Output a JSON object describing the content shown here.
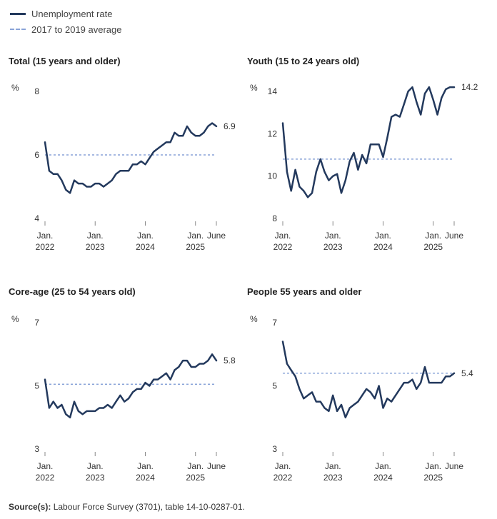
{
  "legend": {
    "line_label": "Unemployment rate",
    "avg_label": "2017 to 2019 average"
  },
  "colors": {
    "line": "#23395d",
    "average": "#8aa4d8",
    "text": "#333333"
  },
  "source": {
    "label": "Source(s):",
    "text": "Labour Force Survey (3701), table 14-10-0287-01."
  },
  "chart_data": [
    {
      "type": "line",
      "title": "Total (15 years and older)",
      "ylabel": "%",
      "ylim": [
        4,
        8
      ],
      "yticks": [
        4,
        6,
        8
      ],
      "xticks": [
        {
          "month": 0,
          "label": [
            "Jan.",
            "2022"
          ]
        },
        {
          "month": 12,
          "label": [
            "Jan.",
            "2023"
          ]
        },
        {
          "month": 24,
          "label": [
            "Jan.",
            "2024"
          ]
        },
        {
          "month": 36,
          "label": [
            "Jan.",
            "2025"
          ]
        },
        {
          "month": 41,
          "label": [
            "June"
          ]
        }
      ],
      "average": 6.0,
      "last_value_label": "6.9",
      "values": [
        6.4,
        5.5,
        5.4,
        5.4,
        5.2,
        4.9,
        4.8,
        5.2,
        5.1,
        5.1,
        5.0,
        5.0,
        5.1,
        5.1,
        5.0,
        5.1,
        5.2,
        5.4,
        5.5,
        5.5,
        5.5,
        5.7,
        5.7,
        5.8,
        5.7,
        5.9,
        6.1,
        6.2,
        6.3,
        6.4,
        6.4,
        6.7,
        6.6,
        6.6,
        6.9,
        6.7,
        6.6,
        6.6,
        6.7,
        6.9,
        7.0,
        6.9
      ]
    },
    {
      "type": "line",
      "title": "Youth (15 to 24 years old)",
      "ylabel": "%",
      "ylim": [
        8,
        14
      ],
      "yticks": [
        8,
        10,
        12,
        14
      ],
      "xticks": [
        {
          "month": 0,
          "label": [
            "Jan.",
            "2022"
          ]
        },
        {
          "month": 12,
          "label": [
            "Jan.",
            "2023"
          ]
        },
        {
          "month": 24,
          "label": [
            "Jan.",
            "2024"
          ]
        },
        {
          "month": 36,
          "label": [
            "Jan.",
            "2025"
          ]
        },
        {
          "month": 41,
          "label": [
            "June"
          ]
        }
      ],
      "average": 10.8,
      "last_value_label": "14.2",
      "values": [
        12.5,
        10.2,
        9.3,
        10.3,
        9.5,
        9.3,
        9.0,
        9.2,
        10.2,
        10.8,
        10.2,
        9.8,
        10.0,
        10.1,
        9.2,
        9.8,
        10.7,
        11.1,
        10.3,
        11.0,
        10.6,
        11.5,
        11.5,
        11.5,
        10.9,
        11.8,
        12.8,
        12.9,
        12.8,
        13.4,
        14.0,
        14.2,
        13.5,
        12.9,
        13.9,
        14.2,
        13.6,
        12.9,
        13.7,
        14.1,
        14.2,
        14.2
      ]
    },
    {
      "type": "line",
      "title": "Core-age (25 to 54 years old)",
      "ylabel": "%",
      "ylim": [
        3,
        7
      ],
      "yticks": [
        3,
        5,
        7
      ],
      "xticks": [
        {
          "month": 0,
          "label": [
            "Jan.",
            "2022"
          ]
        },
        {
          "month": 12,
          "label": [
            "Jan.",
            "2023"
          ]
        },
        {
          "month": 24,
          "label": [
            "Jan.",
            "2024"
          ]
        },
        {
          "month": 36,
          "label": [
            "Jan.",
            "2025"
          ]
        },
        {
          "month": 41,
          "label": [
            "June"
          ]
        }
      ],
      "average": 5.05,
      "last_value_label": "5.8",
      "values": [
        5.2,
        4.3,
        4.5,
        4.3,
        4.4,
        4.1,
        4.0,
        4.5,
        4.2,
        4.1,
        4.2,
        4.2,
        4.2,
        4.3,
        4.3,
        4.4,
        4.3,
        4.5,
        4.7,
        4.5,
        4.6,
        4.8,
        4.9,
        4.9,
        5.1,
        5.0,
        5.2,
        5.2,
        5.3,
        5.4,
        5.2,
        5.5,
        5.6,
        5.8,
        5.8,
        5.6,
        5.6,
        5.7,
        5.7,
        5.8,
        6.0,
        5.8
      ]
    },
    {
      "type": "line",
      "title": "People 55 years and older",
      "ylabel": "%",
      "ylim": [
        3,
        7
      ],
      "yticks": [
        3,
        5,
        7
      ],
      "xticks": [
        {
          "month": 0,
          "label": [
            "Jan.",
            "2022"
          ]
        },
        {
          "month": 12,
          "label": [
            "Jan.",
            "2023"
          ]
        },
        {
          "month": 24,
          "label": [
            "Jan.",
            "2024"
          ]
        },
        {
          "month": 36,
          "label": [
            "Jan.",
            "2025"
          ]
        },
        {
          "month": 41,
          "label": [
            "June"
          ]
        }
      ],
      "average": 5.4,
      "last_value_label": "5.4",
      "values": [
        6.4,
        5.7,
        5.5,
        5.3,
        4.9,
        4.6,
        4.7,
        4.8,
        4.5,
        4.5,
        4.3,
        4.2,
        4.7,
        4.2,
        4.4,
        4.0,
        4.3,
        4.4,
        4.5,
        4.7,
        4.9,
        4.8,
        4.6,
        5.0,
        4.3,
        4.6,
        4.5,
        4.7,
        4.9,
        5.1,
        5.1,
        5.2,
        4.9,
        5.1,
        5.6,
        5.1,
        5.1,
        5.1,
        5.1,
        5.3,
        5.3,
        5.4
      ]
    }
  ]
}
